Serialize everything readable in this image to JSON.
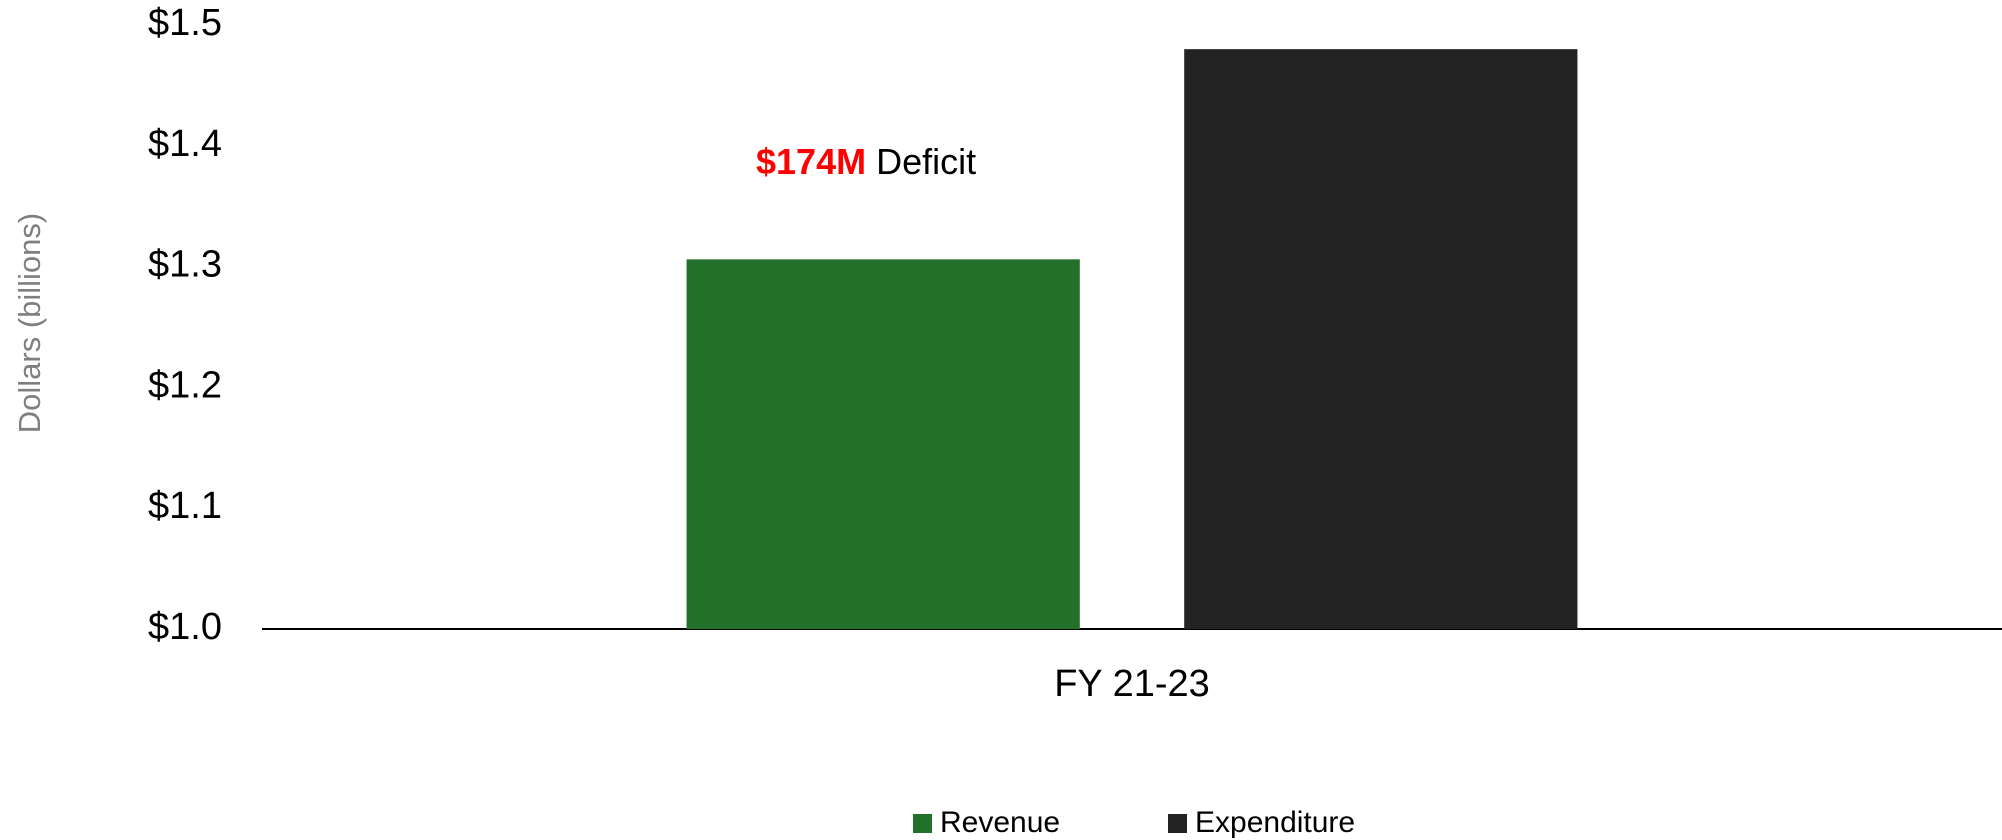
{
  "chart_data": {
    "type": "bar",
    "y_axis_label": "Dollars (billions)",
    "categories": [
      "FY 21-23"
    ],
    "series": [
      {
        "name": "Revenue",
        "color": "#22702a",
        "values": [
          1.306
        ]
      },
      {
        "name": "Expenditure",
        "color": "#232323",
        "values": [
          1.48
        ]
      }
    ],
    "annotation": {
      "highlight": "$174M",
      "highlight_color": "#ff0000",
      "text": "Deficit"
    },
    "ylim": [
      1.0,
      1.5
    ],
    "yticks": [
      {
        "value": 1.0,
        "label": "$1.0"
      },
      {
        "value": 1.1,
        "label": "$1.1"
      },
      {
        "value": 1.2,
        "label": "$1.2"
      },
      {
        "value": 1.3,
        "label": "$1.3"
      },
      {
        "value": 1.4,
        "label": "$1.4"
      },
      {
        "value": 1.5,
        "label": "$1.5"
      }
    ],
    "grid": false,
    "legend": "bottom"
  }
}
